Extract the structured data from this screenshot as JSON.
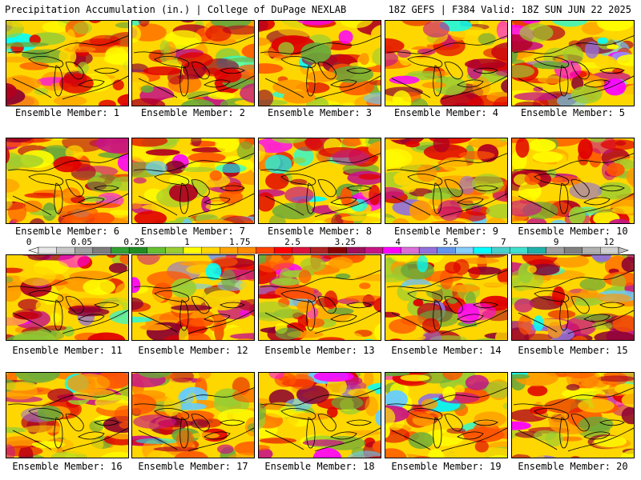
{
  "header": {
    "left": "Precipitation Accumulation (in.) | College of DuPage NEXLAB",
    "right": "18Z GEFS | F384 Valid: 18Z SUN JUN 22 2025"
  },
  "members": [
    "Ensemble Member: 1",
    "Ensemble Member: 2",
    "Ensemble Member: 3",
    "Ensemble Member: 4",
    "Ensemble Member: 5",
    "Ensemble Member: 6",
    "Ensemble Member: 7",
    "Ensemble Member: 8",
    "Ensemble Member: 9",
    "Ensemble Member: 10",
    "Ensemble Member: 11",
    "Ensemble Member: 12",
    "Ensemble Member: 13",
    "Ensemble Member: 14",
    "Ensemble Member: 15",
    "Ensemble Member: 16",
    "Ensemble Member: 17",
    "Ensemble Member: 18",
    "Ensemble Member: 19",
    "Ensemble Member: 20"
  ],
  "colorbar": {
    "tick_labels": [
      "0",
      "0.05",
      "0.25",
      "1",
      "1.75",
      "2.5",
      "3.25",
      "4",
      "5.5",
      "7",
      "9",
      "12"
    ],
    "colors": [
      "#e6e6e6",
      "#c8c8c8",
      "#a0a0a0",
      "#7d7d7d",
      "#32a032",
      "#228b22",
      "#66c030",
      "#9acd32",
      "#ffff00",
      "#ffd700",
      "#ffa500",
      "#ff8c00",
      "#ff4500",
      "#ff0000",
      "#dc143c",
      "#b22222",
      "#8b0000",
      "#a0105a",
      "#c71585",
      "#ff00ff",
      "#da70d6",
      "#9370db",
      "#6495ed",
      "#87cefa",
      "#00ffff",
      "#48d1cc",
      "#40e0d0",
      "#20b2aa",
      "#a0a0a0",
      "#808080",
      "#b0b0b0",
      "#d0d0d0"
    ]
  },
  "field_palette": [
    "#6aa83a",
    "#9acd32",
    "#ffff00",
    "#ffd700",
    "#ff9900",
    "#ff5500",
    "#e00000",
    "#b00020",
    "#8b0030",
    "#c71585",
    "#ff00ff",
    "#9370db",
    "#66ccff",
    "#00ffff"
  ]
}
